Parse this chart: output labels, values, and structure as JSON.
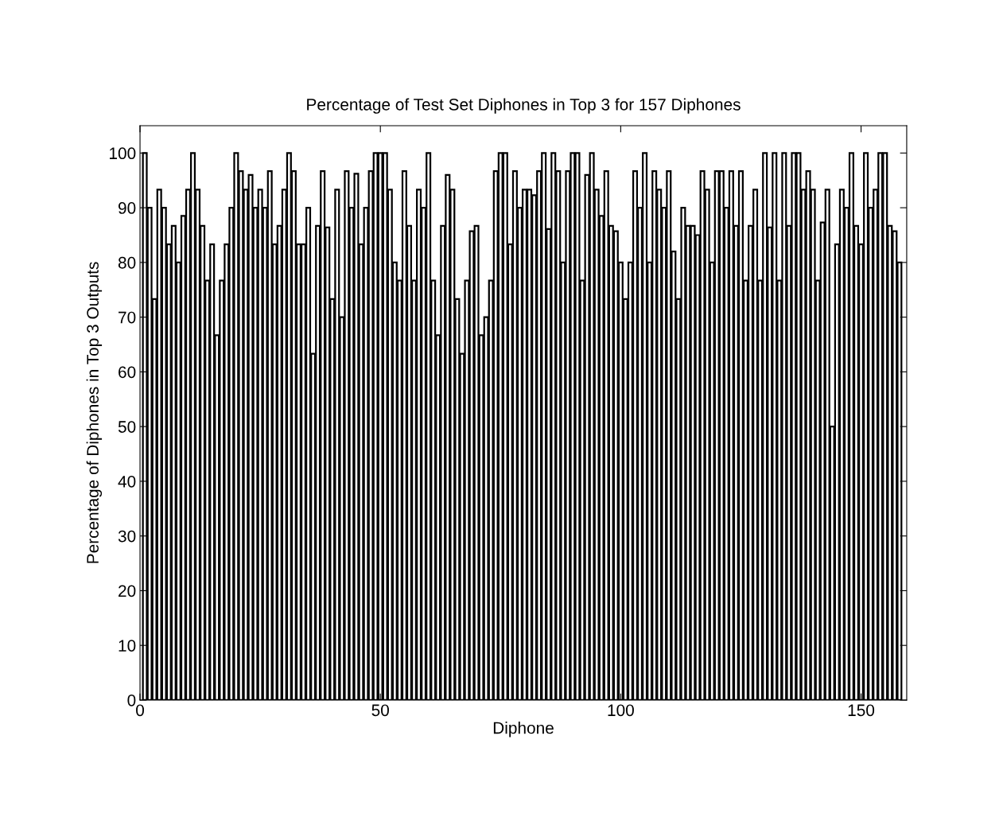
{
  "chart_data": {
    "type": "bar",
    "title": "Percentage of Test Set Diphones in Top 3 for 157 Diphones",
    "xlabel": "Diphone",
    "ylabel": "Percentage of Diphones in Top 3 Outputs",
    "x": [
      1,
      2,
      3,
      4,
      5,
      6,
      7,
      8,
      9,
      10,
      11,
      12,
      13,
      14,
      15,
      16,
      17,
      18,
      19,
      20,
      21,
      22,
      23,
      24,
      25,
      26,
      27,
      28,
      29,
      30,
      31,
      32,
      33,
      34,
      35,
      36,
      37,
      38,
      39,
      40,
      41,
      42,
      43,
      44,
      45,
      46,
      47,
      48,
      49,
      50,
      51,
      52,
      53,
      54,
      55,
      56,
      57,
      58,
      59,
      60,
      61,
      62,
      63,
      64,
      65,
      66,
      67,
      68,
      69,
      70,
      71,
      72,
      73,
      74,
      75,
      76,
      77,
      78,
      79,
      80,
      81,
      82,
      83,
      84,
      85,
      86,
      87,
      88,
      89,
      90,
      91,
      92,
      93,
      94,
      95,
      96,
      97,
      98,
      99,
      100,
      101,
      102,
      103,
      104,
      105,
      106,
      107,
      108,
      109,
      110,
      111,
      112,
      113,
      114,
      115,
      116,
      117,
      118,
      119,
      120,
      121,
      122,
      123,
      124,
      125,
      126,
      127,
      128,
      129,
      130,
      131,
      132,
      133,
      134,
      135,
      136,
      137,
      138,
      139,
      140,
      141,
      142,
      143,
      144,
      145,
      146,
      147,
      148,
      149,
      150,
      151,
      152,
      153,
      154,
      155,
      156,
      157,
      158
    ],
    "values": [
      100,
      90,
      73.3,
      93.3,
      90,
      83.3,
      86.7,
      80,
      88.5,
      93.3,
      100,
      93.3,
      86.7,
      76.7,
      83.3,
      66.7,
      76.7,
      83.3,
      90,
      100,
      96.7,
      93.3,
      96,
      90,
      93.3,
      90,
      96.7,
      83.3,
      86.7,
      93.3,
      100,
      96.7,
      83.3,
      83.3,
      90,
      63.3,
      86.7,
      96.7,
      86.4,
      73.3,
      93.3,
      70,
      96.7,
      90,
      96.2,
      83.3,
      90,
      96.7,
      100,
      100,
      100,
      93.3,
      80,
      76.7,
      96.7,
      86.7,
      76.7,
      93.3,
      90,
      100,
      76.7,
      66.7,
      86.7,
      96,
      93.3,
      73.3,
      63.3,
      76.7,
      85.7,
      86.7,
      66.7,
      70,
      76.7,
      96.7,
      100,
      100,
      83.3,
      96.7,
      90,
      93.3,
      93.3,
      92.3,
      96.7,
      100,
      86.1,
      100,
      96.7,
      80,
      96.7,
      100,
      100,
      76.7,
      96,
      100,
      93.3,
      88.5,
      96.7,
      86.7,
      85.7,
      80,
      73.3,
      80,
      96.7,
      90,
      100,
      80,
      96.7,
      93.3,
      90,
      96.7,
      82,
      73.3,
      90,
      86.7,
      86.7,
      85,
      96.7,
      93.3,
      80,
      96.7,
      96.7,
      90,
      96.7,
      86.7,
      96.7,
      76.7,
      86.7,
      93.3,
      76.7,
      100,
      86.4,
      100,
      76.7,
      100,
      86.7,
      100,
      100,
      93.3,
      96.7,
      93.3,
      76.7,
      87.3,
      93.3,
      50,
      83.3,
      93.3,
      90,
      100,
      86.7,
      83.3,
      100,
      90,
      93.3,
      100,
      100,
      86.7,
      85.7,
      80
    ],
    "color": "#ffffff",
    "xlim": [
      0,
      159.5
    ],
    "xticks": [
      0,
      50,
      100,
      150
    ],
    "ylim": [
      0,
      105
    ],
    "yticks": [
      0,
      10,
      20,
      30,
      40,
      50,
      60,
      70,
      80,
      90,
      100
    ],
    "grid": false,
    "legend": false
  }
}
